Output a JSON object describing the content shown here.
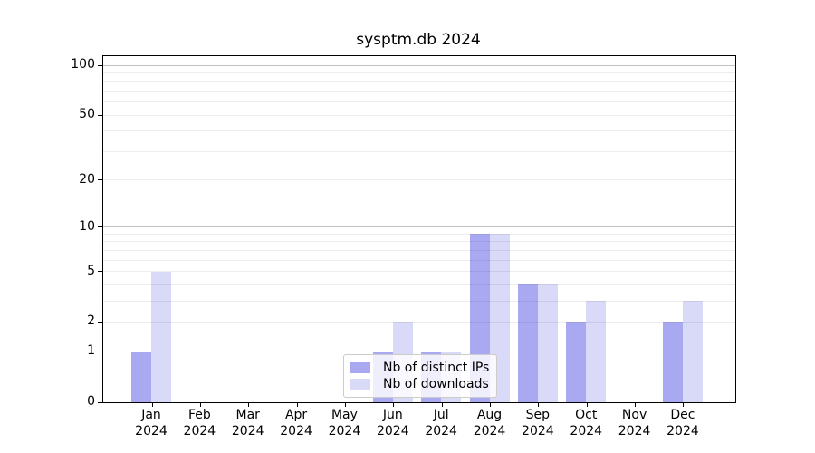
{
  "title": "sysptm.db 2024",
  "chart_data": {
    "type": "bar",
    "title": "sysptm.db 2024",
    "categories": [
      "Jan",
      "Feb",
      "Mar",
      "Apr",
      "May",
      "Jun",
      "Jul",
      "Aug",
      "Sep",
      "Oct",
      "Nov",
      "Dec"
    ],
    "category_sublabel": "2024",
    "series": [
      {
        "name": "Nb of distinct IPs",
        "color": "#a9a9f2",
        "values": [
          1,
          0,
          0,
          0,
          0,
          1,
          1,
          9,
          4,
          2,
          0,
          2
        ]
      },
      {
        "name": "Nb of downloads",
        "color": "#d9d9f8",
        "values": [
          5,
          0,
          0,
          0,
          0,
          2,
          1,
          9,
          4,
          3,
          0,
          3
        ]
      }
    ],
    "xlabel": "",
    "ylabel": "",
    "yscale": "log1p",
    "ylim": [
      0,
      113.36
    ],
    "yticks": [
      0,
      1,
      2,
      5,
      10,
      20,
      50,
      100
    ],
    "major_gridlines": [
      1,
      10,
      100
    ],
    "minor_gridlines": [
      2,
      3,
      4,
      5,
      6,
      7,
      8,
      9,
      20,
      30,
      40,
      50,
      60,
      70,
      80,
      90
    ],
    "grid": "on",
    "legend_position": "lower center inside",
    "background_color": "#ffffff",
    "spine_color": "#000000"
  }
}
